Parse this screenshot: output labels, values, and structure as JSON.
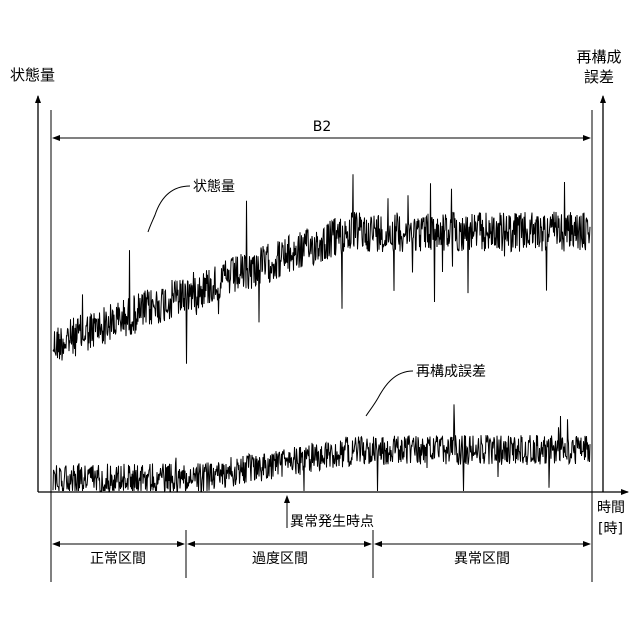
{
  "left_axis_label": "状態量",
  "right_axis_label_line1": "再構成",
  "right_axis_label_line2": "誤差",
  "span_label": "B2",
  "x_axis_label_line1": "時間",
  "x_axis_label_line2": "[時]",
  "anomaly_onset_label": "異常発生時点",
  "series_labels": {
    "state": "状態量",
    "reconstruction_error": "再構成誤差"
  },
  "sections": [
    {
      "label": "正常区間"
    },
    {
      "label": "過度区間"
    },
    {
      "label": "異常区間"
    }
  ],
  "colors": {
    "ink": "#000000",
    "background": "#ffffff"
  }
}
